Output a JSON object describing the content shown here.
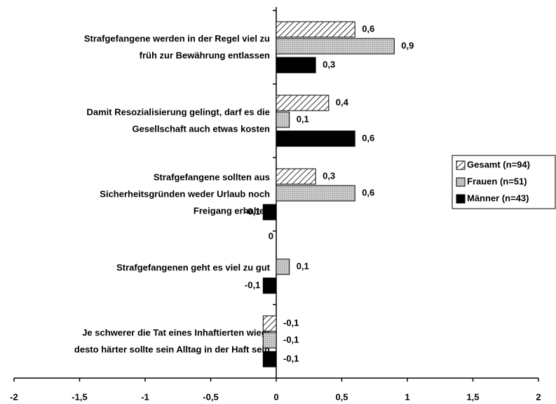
{
  "chart_data": {
    "type": "bar",
    "orientation": "horizontal",
    "categories": [
      [
        "Strafgefangene werden in der Regel viel zu",
        "früh zur Bewährung entlassen"
      ],
      [
        "Damit Resozialisierung gelingt, darf es die",
        "Gesellschaft auch etwas kosten"
      ],
      [
        "Strafgefangene sollten aus",
        "Sicherheitsgründen weder Urlaub noch",
        "Freigang erhalten"
      ],
      [
        "Strafgefangenen geht es viel zu gut"
      ],
      [
        "Je schwerer die Tat eines Inhaftierten wiegt",
        "desto härter sollte sein Alltag in der Haft sein"
      ]
    ],
    "series": [
      {
        "name": "Gesamt (n=94)",
        "color": "hatch",
        "values": [
          0.6,
          0.4,
          0.3,
          0,
          -0.1
        ],
        "value_labels": [
          "0,6",
          "0,4",
          "0,3",
          "0",
          "-0,1"
        ]
      },
      {
        "name": "Frauen (n=51)",
        "color": "#c8c8c8",
        "values": [
          0.9,
          0.1,
          0.6,
          0.1,
          -0.1
        ],
        "value_labels": [
          "0,9",
          "0,1",
          "0,6",
          "0,1",
          "-0,1"
        ]
      },
      {
        "name": "Männer (n=43)",
        "color": "#000000",
        "values": [
          0.3,
          0.6,
          -0.1,
          -0.1,
          -0.1
        ],
        "value_labels": [
          "0,3",
          "0,6",
          "-0,1",
          "-0,1",
          "-0,1"
        ]
      }
    ],
    "xlim": [
      -2,
      2
    ],
    "xticks": [
      -2,
      {
        "value": -1.5,
        "label": "-1,5"
      },
      -1,
      {
        "value": -0.5,
        "label": "-0,5"
      },
      0,
      {
        "value": 0.5,
        "label": "0,5"
      },
      1,
      {
        "value": 1.5,
        "label": "1,5"
      },
      2
    ],
    "legend": "right"
  }
}
